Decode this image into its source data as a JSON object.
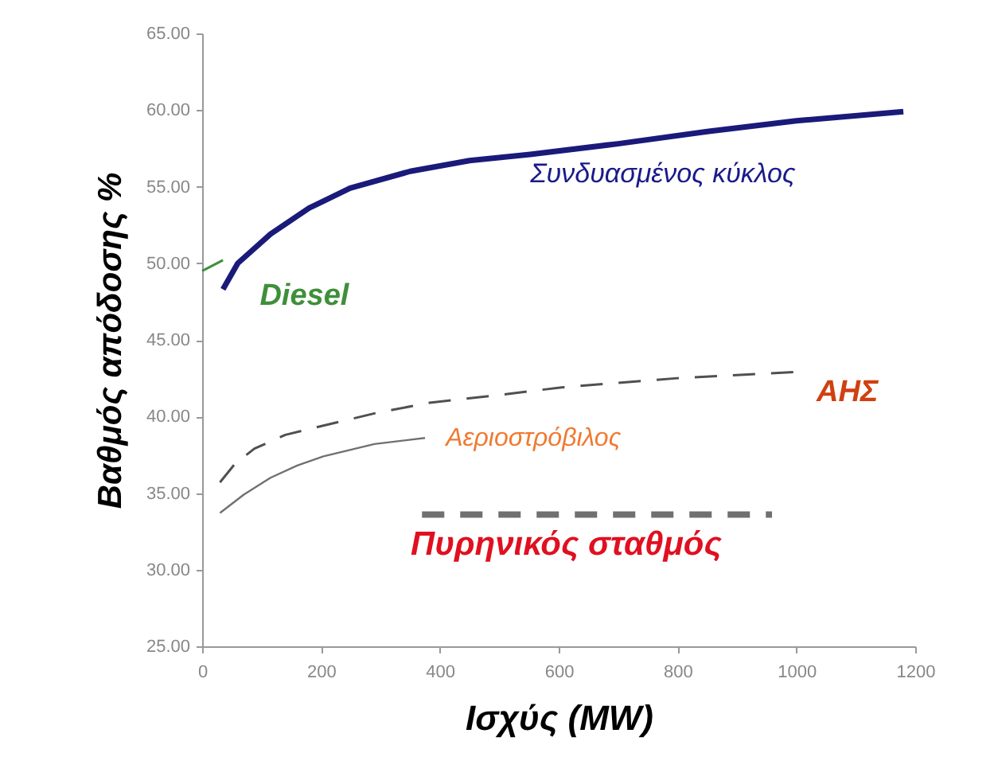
{
  "chart_data": {
    "type": "line",
    "xlabel": "Ισχύς (MW)",
    "ylabel": "Βαθμός απόδοσης %",
    "xlim": [
      0,
      1200
    ],
    "xticks": [
      0,
      200,
      400,
      600,
      800,
      1000,
      1200
    ],
    "ylim": [
      25,
      65
    ],
    "yticks": [
      {
        "value": 25,
        "label": "25.00"
      },
      {
        "value": 30,
        "label": "30.00"
      },
      {
        "value": 35,
        "label": "35.00"
      },
      {
        "value": 40,
        "label": "40.00"
      },
      {
        "value": 45,
        "label": "45.00"
      },
      {
        "value": 50,
        "label": "50.00"
      },
      {
        "value": 55,
        "label": "55.00"
      },
      {
        "value": 60,
        "label": "60.00"
      },
      {
        "value": 65,
        "label": "65.00"
      }
    ],
    "grid": false,
    "marker": "none",
    "series": [
      {
        "name": "Συνδυασμένος κύκλος",
        "color": "#1a1a7a",
        "line_style": "solid",
        "x": [
          35,
          60,
          115,
          180,
          249,
          350,
          450,
          552,
          700,
          850,
          1000,
          1180
        ],
        "values": [
          48.3,
          50.0,
          51.9,
          53.6,
          54.9,
          56.0,
          56.7,
          57.1,
          57.8,
          58.6,
          59.3,
          59.9
        ]
      },
      {
        "name": "Diesel",
        "color": "#3f8f3a",
        "line_style": "solid",
        "x": [
          0,
          15,
          35
        ],
        "values": [
          49.5,
          49.8,
          50.2
        ]
      },
      {
        "name": "ΑΗΣ",
        "color": "#505050",
        "line_style": "dashed",
        "x": [
          30,
          55,
          88,
          140,
          204,
          290,
          383,
          500,
          605,
          800,
          999
        ],
        "values": [
          35.7,
          36.9,
          37.9,
          38.8,
          39.4,
          40.2,
          40.9,
          41.4,
          41.9,
          42.5,
          42.9
        ]
      },
      {
        "name": "Αεριοστρόβιλος",
        "color": "#707070",
        "line_style": "solid",
        "x": [
          30,
          70,
          115,
          160,
          204,
          290,
          375
        ],
        "values": [
          33.7,
          34.9,
          36.0,
          36.8,
          37.4,
          38.2,
          38.6
        ]
      },
      {
        "name": "Πυρηνικός σταθμός",
        "color": "#707070",
        "line_style": "dashed",
        "x": [
          370,
          959
        ],
        "values": [
          33.6,
          33.6
        ]
      }
    ]
  }
}
